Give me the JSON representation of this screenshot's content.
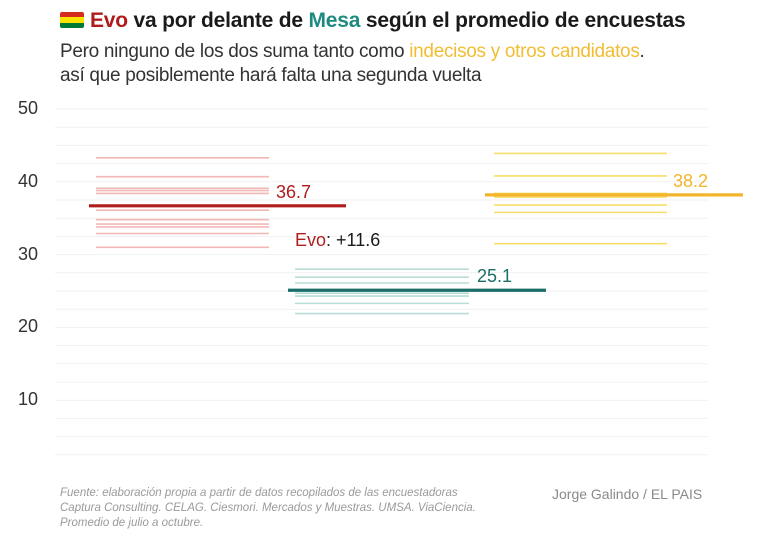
{
  "header": {
    "flag_icon": "bolivia-flag-icon",
    "flag_colors": [
      "#d52b1e",
      "#f9e300",
      "#007934"
    ],
    "title_parts": [
      {
        "text": "Evo",
        "style": "evo"
      },
      {
        "text": " va por delante de ",
        "style": "plain"
      },
      {
        "text": "Mesa",
        "style": "mesa"
      },
      {
        "text": " según el promedio de encuestas",
        "style": "plain"
      }
    ],
    "subtitle_line1_parts": [
      {
        "text": "Pero ninguno de los dos suma tanto como ",
        "style": "plain"
      },
      {
        "text": "indecisos y otros candidatos",
        "style": "other"
      },
      {
        "text": ".",
        "style": "plain"
      }
    ],
    "subtitle_line2": "así que posiblemente hará falta una segunda vuelta"
  },
  "colors": {
    "evo": "#b01c1c",
    "evo_light": "#f2b8b5",
    "mesa": "#1b6e68",
    "mesa_light": "#b6ddd8",
    "other": "#f2b52b",
    "other_light": "#f8dd6a",
    "grid": "#f1f1f1"
  },
  "chart_data": {
    "type": "line",
    "title": "Evo va por delante de Mesa según el promedio de encuestas",
    "subtitle": "Pero ninguno de los dos suma tanto como indecisos y otros candidatos. así que posiblemente hará falta una segunda vuelta",
    "xlabel": "",
    "ylabel": "",
    "ylim": [
      0,
      50
    ],
    "yticks": [
      10,
      20,
      30,
      40,
      50
    ],
    "grid": true,
    "series": [
      {
        "name": "Evo",
        "color_key": "evo",
        "average": 36.7,
        "average_label": "36.7",
        "polls": [
          43.3,
          40.7,
          39.1,
          38.8,
          38.4,
          36.1,
          34.8,
          34.2,
          33.8,
          32.9,
          31.0
        ]
      },
      {
        "name": "Mesa",
        "color_key": "mesa",
        "average": 25.1,
        "average_label": "25.1",
        "polls": [
          28.0,
          26.9,
          26.1,
          24.7,
          24.3,
          23.3,
          21.9
        ]
      },
      {
        "name": "Indecisos y otros candidatos",
        "color_key": "other",
        "average": 38.2,
        "average_label": "38.2",
        "polls": [
          43.9,
          40.8,
          38.4,
          37.9,
          36.8,
          35.8,
          31.5
        ]
      }
    ],
    "annotations": [
      {
        "name": "Evo",
        "text_prefix": "Evo",
        "text_suffix": ": +11.6",
        "value": 11.6
      }
    ]
  },
  "footer": {
    "source": "Fuente: elaboración propia a partir de datos recopilados de las encuestadoras Captura Consulting. CELAG. Ciesmori. Mercados y Muestras. UMSA. ViaCiencia. Promedio de julio a octubre.",
    "credit": "Jorge Galindo / EL PAIS"
  }
}
